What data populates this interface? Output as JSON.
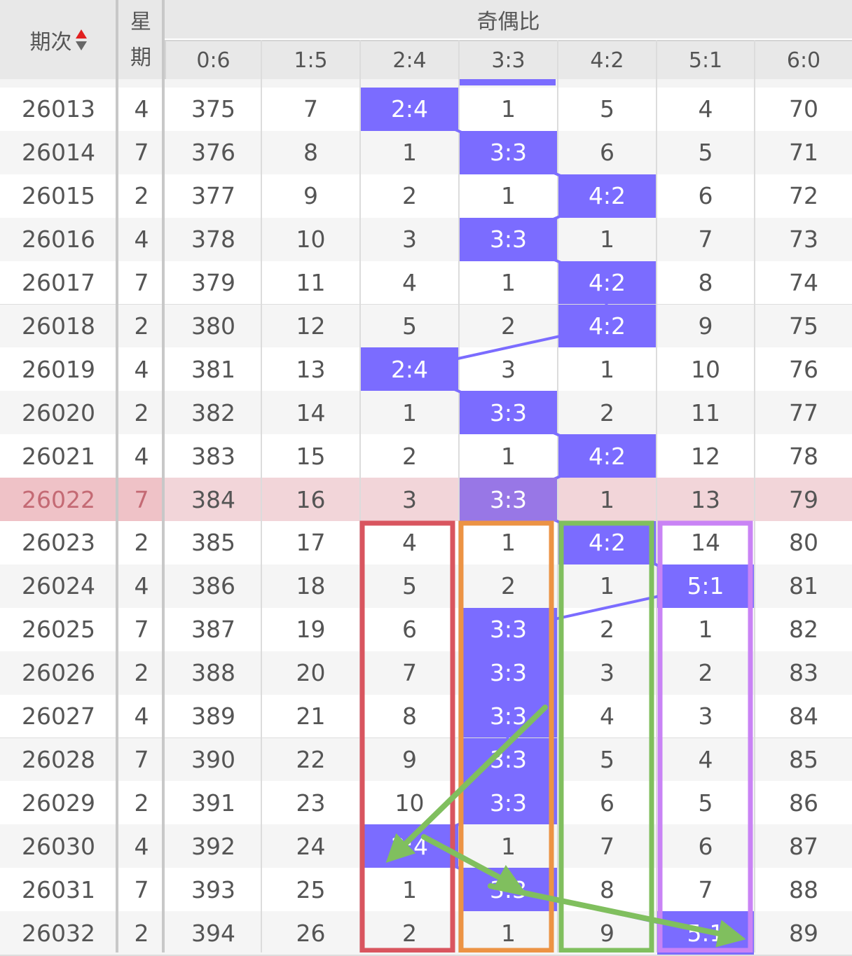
{
  "header": {
    "period": "期次",
    "weekday_1": "星",
    "weekday_2": "期",
    "group": "奇偶比",
    "ratios": [
      "0:6",
      "1:5",
      "2:4",
      "3:3",
      "4:2",
      "5:1",
      "6:0"
    ],
    "sort_icon": "sort-up-down-icon"
  },
  "colors": {
    "hit": "#7b6cff",
    "highlight_row": "#f2d5d9",
    "box_red": "#d9555f",
    "box_orange": "#ec9344",
    "box_green": "#80bf5e",
    "box_purple": "#c983f5",
    "arrow": "#80bf5e"
  },
  "highlight_period": "26022",
  "rows": [
    {
      "period": "26013",
      "weekday": "4",
      "values": [
        "375",
        "7",
        "2:4",
        "1",
        "5",
        "4",
        "70"
      ],
      "hit": 2
    },
    {
      "period": "26014",
      "weekday": "7",
      "values": [
        "376",
        "8",
        "1",
        "3:3",
        "6",
        "5",
        "71"
      ],
      "hit": 3
    },
    {
      "period": "26015",
      "weekday": "2",
      "values": [
        "377",
        "9",
        "2",
        "1",
        "4:2",
        "6",
        "72"
      ],
      "hit": 4
    },
    {
      "period": "26016",
      "weekday": "4",
      "values": [
        "378",
        "10",
        "3",
        "3:3",
        "1",
        "7",
        "73"
      ],
      "hit": 3
    },
    {
      "period": "26017",
      "weekday": "7",
      "values": [
        "379",
        "11",
        "4",
        "1",
        "4:2",
        "8",
        "74"
      ],
      "hit": 4
    },
    {
      "period": "26018",
      "weekday": "2",
      "values": [
        "380",
        "12",
        "5",
        "2",
        "4:2",
        "9",
        "75"
      ],
      "hit": 4
    },
    {
      "period": "26019",
      "weekday": "4",
      "values": [
        "381",
        "13",
        "2:4",
        "3",
        "1",
        "10",
        "76"
      ],
      "hit": 2
    },
    {
      "period": "26020",
      "weekday": "2",
      "values": [
        "382",
        "14",
        "1",
        "3:3",
        "2",
        "11",
        "77"
      ],
      "hit": 3
    },
    {
      "period": "26021",
      "weekday": "4",
      "values": [
        "383",
        "15",
        "2",
        "1",
        "4:2",
        "12",
        "78"
      ],
      "hit": 4
    },
    {
      "period": "26022",
      "weekday": "7",
      "values": [
        "384",
        "16",
        "3",
        "3:3",
        "1",
        "13",
        "79"
      ],
      "hit": 3
    },
    {
      "period": "26023",
      "weekday": "2",
      "values": [
        "385",
        "17",
        "4",
        "1",
        "4:2",
        "14",
        "80"
      ],
      "hit": 4
    },
    {
      "period": "26024",
      "weekday": "4",
      "values": [
        "386",
        "18",
        "5",
        "2",
        "1",
        "5:1",
        "81"
      ],
      "hit": 5
    },
    {
      "period": "26025",
      "weekday": "7",
      "values": [
        "387",
        "19",
        "6",
        "3:3",
        "2",
        "1",
        "82"
      ],
      "hit": 3
    },
    {
      "period": "26026",
      "weekday": "2",
      "values": [
        "388",
        "20",
        "7",
        "3:3",
        "3",
        "2",
        "83"
      ],
      "hit": 3
    },
    {
      "period": "26027",
      "weekday": "4",
      "values": [
        "389",
        "21",
        "8",
        "3:3",
        "4",
        "3",
        "84"
      ],
      "hit": 3
    },
    {
      "period": "26028",
      "weekday": "7",
      "values": [
        "390",
        "22",
        "9",
        "3:3",
        "5",
        "4",
        "85"
      ],
      "hit": 3
    },
    {
      "period": "26029",
      "weekday": "2",
      "values": [
        "391",
        "23",
        "10",
        "3:3",
        "6",
        "5",
        "86"
      ],
      "hit": 3
    },
    {
      "period": "26030",
      "weekday": "4",
      "values": [
        "392",
        "24",
        "2:4",
        "1",
        "7",
        "6",
        "87"
      ],
      "hit": 2
    },
    {
      "period": "26031",
      "weekday": "7",
      "values": [
        "393",
        "25",
        "1",
        "3:3",
        "8",
        "7",
        "88"
      ],
      "hit": 3
    },
    {
      "period": "26032",
      "weekday": "2",
      "values": [
        "394",
        "26",
        "2",
        "1",
        "9",
        "5:1",
        "89"
      ],
      "hit": 5
    }
  ]
}
